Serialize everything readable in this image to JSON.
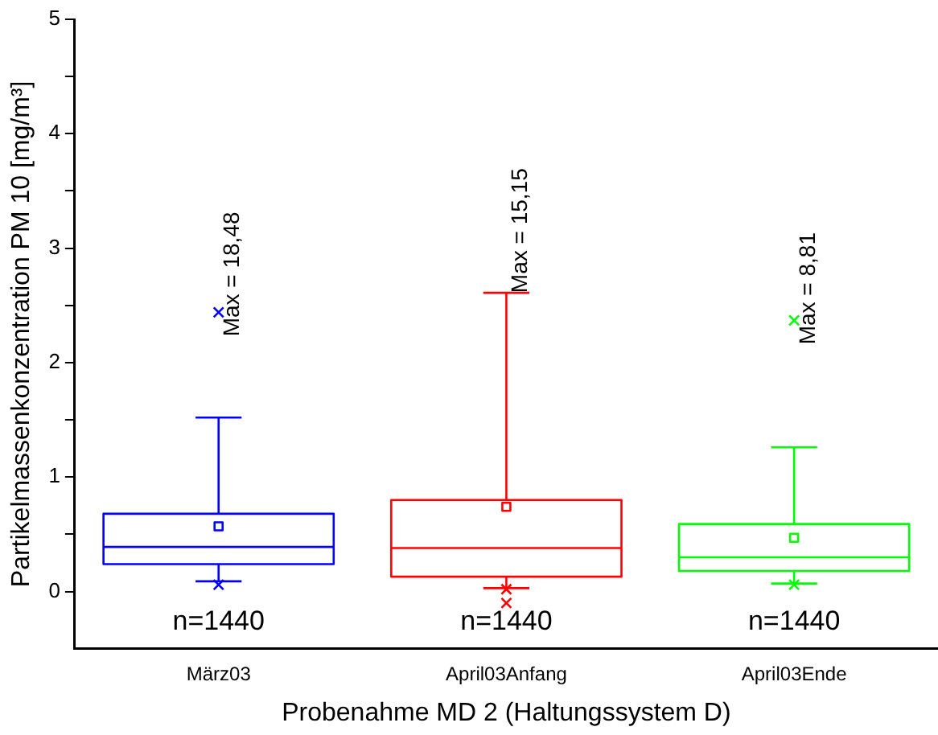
{
  "chart_data": {
    "type": "box",
    "xlabel": "Probenahme MD 2 (Haltungssystem D)",
    "ylabel": "Partikelmassenkonzentration PM 10 [mg/m³]",
    "categories": [
      "März03",
      "April03Anfang",
      "April03Ende"
    ],
    "colors": [
      "#0000ff",
      "#ff0000",
      "#00ff00"
    ],
    "boxes": [
      {
        "low": 0.09,
        "q1": 0.24,
        "median": 0.39,
        "q3": 0.68,
        "high": 1.52,
        "mean": 0.57,
        "outliers": [
          2.44,
          0.06
        ]
      },
      {
        "low": 0.03,
        "q1": 0.13,
        "median": 0.38,
        "q3": 0.8,
        "high": 2.61,
        "mean": 0.74,
        "outliers": [
          0.02,
          -0.1
        ]
      },
      {
        "low": 0.07,
        "q1": 0.18,
        "median": 0.3,
        "q3": 0.59,
        "high": 1.26,
        "mean": 0.47,
        "outliers": [
          2.37,
          0.06
        ]
      }
    ],
    "ylim": [
      -0.5,
      5
    ],
    "yticks": [
      0,
      {
        "value": 0.5,
        "label": null
      },
      1,
      {
        "value": 1.5,
        "label": null
      },
      2,
      {
        "value": 2.5,
        "label": null
      },
      3,
      {
        "value": 3.5,
        "label": null
      },
      4,
      {
        "value": 4.5,
        "label": null
      },
      5
    ],
    "grid": false,
    "legend": false,
    "annotations": [
      "Max = 18,48",
      "Max = 15,15",
      "Max = 8,81",
      "n=1440",
      "n=1440",
      "n=1440"
    ]
  }
}
